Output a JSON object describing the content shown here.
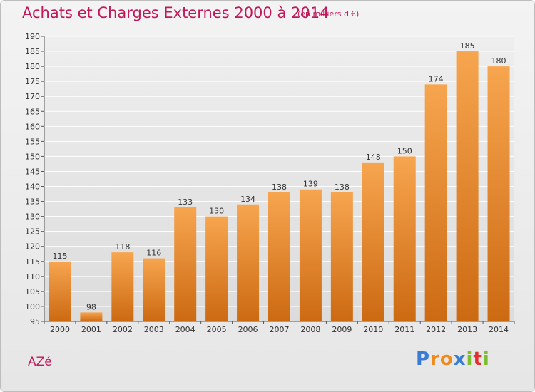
{
  "header": {
    "title": "Achats et Charges Externes 2000 à 2014",
    "unit_note": "(en milliers d'€)"
  },
  "footer": {
    "commune": "AZé",
    "brand_letters": [
      "P",
      "r",
      "o",
      "x",
      "i",
      "t",
      "i"
    ],
    "brand_colors": [
      "#3a7bd5",
      "#f08a1c",
      "#f08a1c",
      "#3a7bd5",
      "#7bbf2a",
      "#e0312f",
      "#7bbf2a"
    ]
  },
  "colors": {
    "bar_top": "#f7a54f",
    "bar_bottom": "#cc6a12",
    "title": "#c0185a",
    "grid": "#ffffff"
  },
  "chart_data": {
    "type": "bar",
    "categories": [
      "2000",
      "2001",
      "2002",
      "2003",
      "2004",
      "2005",
      "2006",
      "2007",
      "2008",
      "2009",
      "2010",
      "2011",
      "2012",
      "2013",
      "2014"
    ],
    "values": [
      115,
      98,
      118,
      116,
      133,
      130,
      134,
      138,
      139,
      138,
      148,
      150,
      174,
      185,
      180
    ],
    "value_labels": [
      "115",
      "98",
      "118",
      "116",
      "133",
      "130",
      "134",
      "138",
      "139",
      "138",
      "148",
      "150",
      "174",
      "185",
      "180"
    ],
    "ylim": [
      95,
      190
    ],
    "yticks": [
      95,
      100,
      105,
      110,
      115,
      120,
      125,
      130,
      135,
      140,
      145,
      150,
      155,
      160,
      165,
      170,
      175,
      180,
      185,
      190
    ],
    "grid": true,
    "title": "Achats et Charges Externes 2000 à 2014",
    "xlabel": "",
    "ylabel": ""
  }
}
